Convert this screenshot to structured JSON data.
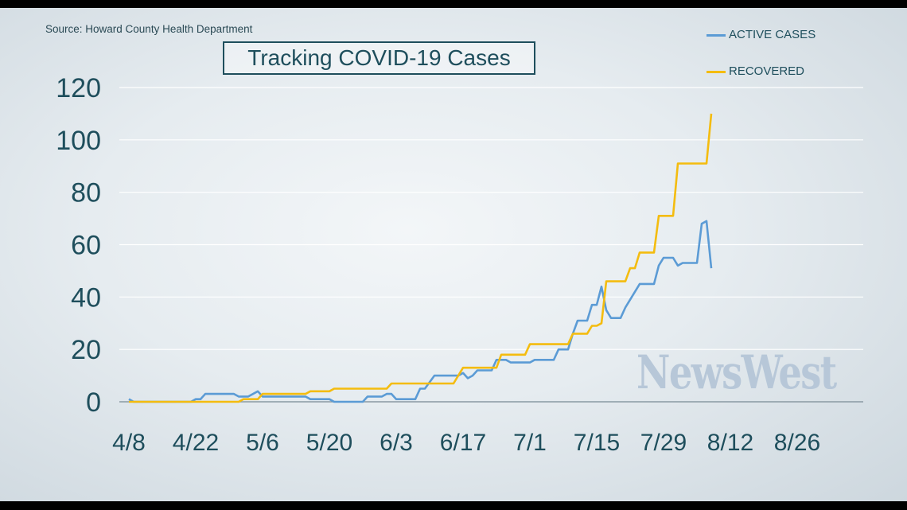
{
  "source": "Source: Howard County Health Department",
  "watermark": "NewsWest",
  "chart_data": {
    "type": "line",
    "title": "Tracking COVID-19 Cases",
    "xlabel": "",
    "ylabel": "",
    "ylim": [
      0,
      120
    ],
    "yticks": [
      "0",
      "20",
      "40",
      "60",
      "80",
      "100",
      "120"
    ],
    "xticks": [
      "4/8",
      "4/22",
      "5/6",
      "5/20",
      "6/3",
      "6/17",
      "7/1",
      "7/15",
      "7/29",
      "8/12",
      "8/26"
    ],
    "grid": "horizontal",
    "legend_position": "top-right",
    "series": [
      {
        "name": "ACTIVE CASES",
        "color": "#5b9bd5",
        "points": [
          [
            "4/8",
            1
          ],
          [
            "4/9",
            0
          ],
          [
            "4/21",
            0
          ],
          [
            "4/22",
            1
          ],
          [
            "4/23",
            1
          ],
          [
            "4/24",
            3
          ],
          [
            "4/30",
            3
          ],
          [
            "5/1",
            2
          ],
          [
            "5/3",
            2
          ],
          [
            "5/5",
            4
          ],
          [
            "5/6",
            2
          ],
          [
            "5/15",
            2
          ],
          [
            "5/16",
            1
          ],
          [
            "5/20",
            1
          ],
          [
            "5/21",
            0
          ],
          [
            "5/27",
            0
          ],
          [
            "5/28",
            2
          ],
          [
            "5/31",
            2
          ],
          [
            "6/1",
            3
          ],
          [
            "6/2",
            3
          ],
          [
            "6/3",
            1
          ],
          [
            "6/7",
            1
          ],
          [
            "6/8",
            5
          ],
          [
            "6/9",
            5
          ],
          [
            "6/11",
            10
          ],
          [
            "6/16",
            10
          ],
          [
            "6/17",
            11
          ],
          [
            "6/18",
            9
          ],
          [
            "6/19",
            10
          ],
          [
            "6/20",
            12
          ],
          [
            "6/23",
            12
          ],
          [
            "6/24",
            16
          ],
          [
            "6/26",
            16
          ],
          [
            "6/27",
            15
          ],
          [
            "7/1",
            15
          ],
          [
            "7/2",
            16
          ],
          [
            "7/6",
            16
          ],
          [
            "7/7",
            20
          ],
          [
            "7/9",
            20
          ],
          [
            "7/10",
            26
          ],
          [
            "7/11",
            31
          ],
          [
            "7/13",
            31
          ],
          [
            "7/14",
            37
          ],
          [
            "7/15",
            37
          ],
          [
            "7/16",
            44
          ],
          [
            "7/17",
            35
          ],
          [
            "7/18",
            32
          ],
          [
            "7/20",
            32
          ],
          [
            "7/21",
            36
          ],
          [
            "7/24",
            45
          ],
          [
            "7/27",
            45
          ],
          [
            "7/28",
            52
          ],
          [
            "7/29",
            55
          ],
          [
            "7/31",
            55
          ],
          [
            "8/1",
            52
          ],
          [
            "8/2",
            53
          ],
          [
            "8/5",
            53
          ],
          [
            "8/6",
            68
          ],
          [
            "8/7",
            69
          ],
          [
            "8/8",
            51
          ]
        ]
      },
      {
        "name": "RECOVERED",
        "color": "#f4bc0f",
        "points": [
          [
            "4/8",
            0
          ],
          [
            "5/1",
            0
          ],
          [
            "5/2",
            1
          ],
          [
            "5/5",
            1
          ],
          [
            "5/6",
            3
          ],
          [
            "5/15",
            3
          ],
          [
            "5/16",
            4
          ],
          [
            "5/20",
            4
          ],
          [
            "5/21",
            5
          ],
          [
            "6/1",
            5
          ],
          [
            "6/2",
            7
          ],
          [
            "6/10",
            7
          ],
          [
            "6/11",
            7
          ],
          [
            "6/15",
            7
          ],
          [
            "6/17",
            13
          ],
          [
            "6/24",
            13
          ],
          [
            "6/25",
            18
          ],
          [
            "6/30",
            18
          ],
          [
            "7/1",
            22
          ],
          [
            "7/9",
            22
          ],
          [
            "7/10",
            26
          ],
          [
            "7/13",
            26
          ],
          [
            "7/14",
            29
          ],
          [
            "7/15",
            29
          ],
          [
            "7/16",
            30
          ],
          [
            "7/17",
            46
          ],
          [
            "7/21",
            46
          ],
          [
            "7/22",
            51
          ],
          [
            "7/23",
            51
          ],
          [
            "7/24",
            57
          ],
          [
            "7/27",
            57
          ],
          [
            "7/28",
            71
          ],
          [
            "7/31",
            71
          ],
          [
            "8/1",
            91
          ],
          [
            "8/7",
            91
          ],
          [
            "8/8",
            110
          ]
        ]
      }
    ]
  }
}
